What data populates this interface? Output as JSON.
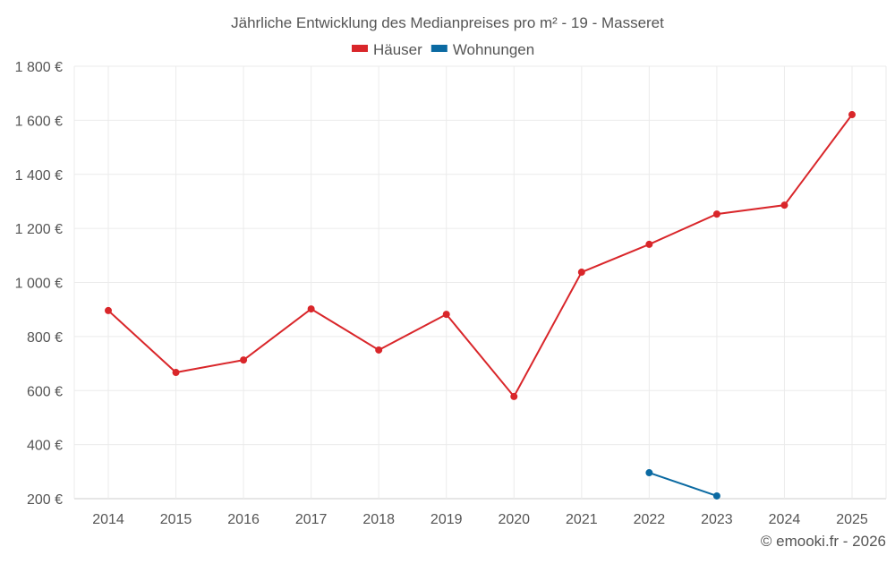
{
  "chart_data": {
    "type": "line",
    "title": "Jährliche Entwicklung des Medianpreises pro m² - 19 - Masseret",
    "xlabel": "",
    "ylabel": "",
    "x": [
      "2014",
      "2015",
      "2016",
      "2017",
      "2018",
      "2019",
      "2020",
      "2021",
      "2022",
      "2023",
      "2024",
      "2025"
    ],
    "ylim": [
      200,
      1800
    ],
    "yticks": [
      200,
      400,
      600,
      800,
      1000,
      1200,
      1400,
      1600,
      1800
    ],
    "ytick_labels": [
      "200 €",
      "400 €",
      "600 €",
      "800 €",
      "1 000 €",
      "1 200 €",
      "1 400 €",
      "1 600 €",
      "1 800 €"
    ],
    "grid": true,
    "legend_position": "top-center",
    "series": [
      {
        "name": "Häuser",
        "color": "#d9262a",
        "values": [
          896,
          667,
          713,
          902,
          750,
          882,
          578,
          1038,
          1141,
          1253,
          1286,
          1621
        ]
      },
      {
        "name": "Wohnungen",
        "color": "#0b6aa2",
        "values": [
          null,
          null,
          null,
          null,
          null,
          null,
          null,
          null,
          296,
          210,
          null,
          null
        ]
      }
    ]
  },
  "credit": "© emooki.fr - 2026"
}
